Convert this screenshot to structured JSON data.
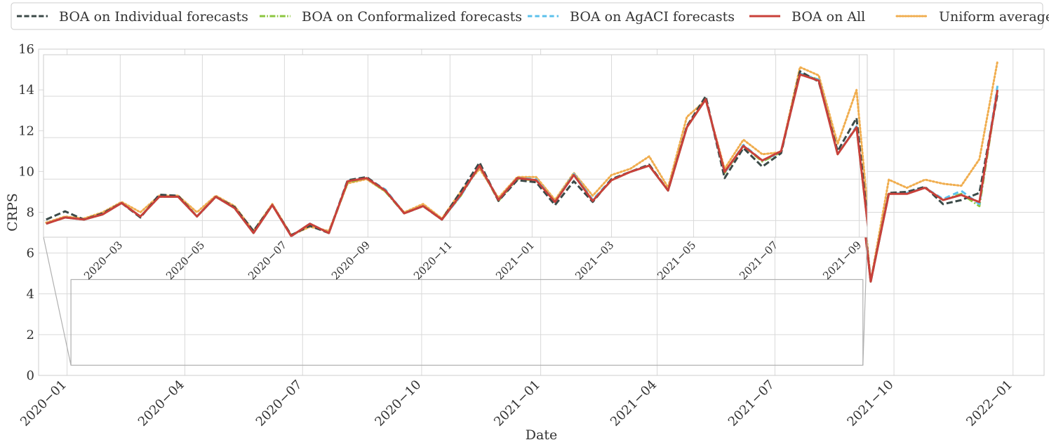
{
  "chart_data": {
    "type": "line",
    "title": "",
    "xlabel": "Date",
    "ylabel": "CRPS",
    "grid": true,
    "legend_position": "top",
    "main": {
      "xlim": [
        "2019-12-10",
        "2022-01-25"
      ],
      "ylim": [
        0,
        16
      ],
      "yticks": [
        0,
        2,
        4,
        6,
        8,
        10,
        12,
        14,
        16
      ],
      "xticks": [
        "2020-01-01",
        "2020-04-01",
        "2020-07-01",
        "2020-10-01",
        "2021-01-01",
        "2021-04-01",
        "2021-07-01",
        "2021-10-01",
        "2022-01-01"
      ],
      "xtick_labels": [
        "2020−01",
        "2020−04",
        "2020−07",
        "2020−10",
        "2021−01",
        "2021−04",
        "2021−07",
        "2021−10",
        "2022−01"
      ]
    },
    "inset": {
      "xlim": [
        "2020-01-04",
        "2021-09-07"
      ],
      "ylim": [
        7.2,
        16.0
      ],
      "yticks": [
        8,
        10,
        12,
        14,
        16
      ],
      "xticks": [
        "2020-03-01",
        "2020-05-01",
        "2020-07-01",
        "2020-09-01",
        "2020-11-01",
        "2021-01-01",
        "2021-03-01",
        "2021-05-01",
        "2021-07-01",
        "2021-09-01"
      ],
      "xtick_labels": [
        "2020−03",
        "2020−05",
        "2020−07",
        "2020−09",
        "2020−11",
        "2021−01",
        "2021−03",
        "2021−05",
        "2021−07",
        "2021−09"
      ]
    },
    "x": [
      "2020-01-06",
      "2020-01-20",
      "2020-02-03",
      "2020-02-17",
      "2020-03-02",
      "2020-03-16",
      "2020-03-30",
      "2020-04-13",
      "2020-04-27",
      "2020-05-11",
      "2020-05-25",
      "2020-06-08",
      "2020-06-22",
      "2020-07-06",
      "2020-07-20",
      "2020-08-03",
      "2020-08-17",
      "2020-08-31",
      "2020-09-14",
      "2020-09-28",
      "2020-10-12",
      "2020-10-26",
      "2020-11-09",
      "2020-11-23",
      "2020-12-07",
      "2020-12-21",
      "2021-01-04",
      "2021-01-18",
      "2021-02-01",
      "2021-02-15",
      "2021-03-01",
      "2021-03-15",
      "2021-03-29",
      "2021-04-12",
      "2021-04-26",
      "2021-05-10",
      "2021-05-24",
      "2021-06-07",
      "2021-06-21",
      "2021-07-05",
      "2021-07-19",
      "2021-08-02",
      "2021-08-16",
      "2021-08-30",
      "2021-09-13",
      "2021-09-27",
      "2021-10-11",
      "2021-10-25",
      "2021-11-08",
      "2021-11-22",
      "2021-12-06",
      "2021-12-20"
    ],
    "series": [
      {
        "name": "Uniform average",
        "color": "#f0ad4e",
        "dash": "dotted",
        "values": [
          7.9,
          8.2,
          8.1,
          8.4,
          8.9,
          8.4,
          9.2,
          9.2,
          8.4,
          9.2,
          8.7,
          7.5,
          8.8,
          7.3,
          7.7,
          7.5,
          9.8,
          10.0,
          9.4,
          8.4,
          8.8,
          8.1,
          9.4,
          10.5,
          9.1,
          10.1,
          10.1,
          9.0,
          10.3,
          9.2,
          10.2,
          10.5,
          11.1,
          9.6,
          13.0,
          13.8,
          10.5,
          11.9,
          11.2,
          11.3,
          15.4,
          15.0,
          11.7,
          14.3,
          4.6,
          9.6,
          9.2,
          9.6,
          9.4,
          9.3,
          10.6,
          15.4
        ]
      },
      {
        "name": "BOA on Conformalized forecasts",
        "color": "#8cc63f",
        "dash": "dashdot",
        "values": [
          7.85,
          8.15,
          8.05,
          8.3,
          8.85,
          8.2,
          9.15,
          9.15,
          8.2,
          9.15,
          8.6,
          7.4,
          8.75,
          7.25,
          7.85,
          7.4,
          9.85,
          10.05,
          9.4,
          8.35,
          8.7,
          8.05,
          9.2,
          10.65,
          8.95,
          10.0,
          9.95,
          8.9,
          10.25,
          8.95,
          9.95,
          10.35,
          10.65,
          9.45,
          12.5,
          13.85,
          10.3,
          11.6,
          10.85,
          11.3,
          15.1,
          14.8,
          11.2,
          12.5,
          4.6,
          8.9,
          8.95,
          9.2,
          8.6,
          8.9,
          8.3,
          14.0
        ]
      },
      {
        "name": "BOA on AgACI forecasts",
        "color": "#5bc0eb",
        "dash": "dashed",
        "values": [
          7.85,
          8.15,
          8.05,
          8.3,
          8.85,
          8.2,
          9.15,
          9.15,
          8.2,
          9.15,
          8.6,
          7.4,
          8.75,
          7.25,
          7.85,
          7.4,
          9.95,
          10.05,
          9.5,
          8.35,
          8.7,
          8.05,
          9.2,
          10.65,
          9.0,
          10.05,
          10.0,
          8.9,
          10.25,
          9.0,
          10.0,
          10.35,
          10.65,
          9.45,
          12.5,
          13.85,
          10.3,
          11.65,
          10.9,
          11.3,
          15.1,
          14.8,
          11.2,
          12.55,
          4.6,
          8.9,
          8.95,
          9.2,
          8.65,
          9.05,
          8.4,
          14.2
        ]
      },
      {
        "name": "BOA on Individual forecasts",
        "color": "#3b4a48",
        "dash": "longdash",
        "values": [
          8.05,
          8.45,
          8.05,
          8.35,
          8.85,
          8.15,
          9.25,
          9.2,
          8.2,
          9.15,
          8.65,
          7.5,
          8.75,
          7.3,
          7.75,
          7.4,
          9.95,
          10.1,
          9.45,
          8.35,
          8.7,
          8.05,
          9.4,
          10.8,
          8.95,
          9.95,
          9.85,
          8.75,
          9.9,
          8.9,
          10.0,
          10.35,
          10.7,
          9.45,
          12.55,
          14.0,
          10.05,
          11.5,
          10.6,
          11.25,
          15.2,
          14.7,
          11.35,
          12.95,
          4.6,
          8.95,
          9.0,
          9.25,
          8.4,
          8.6,
          8.95,
          13.8
        ]
      },
      {
        "name": "BOA on All",
        "color": "#c9403a",
        "dash": "solid",
        "values": [
          7.85,
          8.15,
          8.05,
          8.3,
          8.85,
          8.2,
          9.15,
          9.15,
          8.2,
          9.15,
          8.6,
          7.4,
          8.75,
          7.25,
          7.85,
          7.4,
          9.9,
          10.05,
          9.45,
          8.35,
          8.7,
          8.05,
          9.25,
          10.65,
          9.0,
          10.05,
          9.95,
          8.9,
          10.2,
          8.95,
          9.95,
          10.35,
          10.65,
          9.45,
          12.5,
          13.85,
          10.35,
          11.6,
          10.9,
          11.35,
          15.05,
          14.75,
          11.2,
          12.5,
          4.6,
          8.9,
          8.9,
          9.2,
          8.6,
          8.85,
          8.5,
          14.0
        ]
      }
    ],
    "legend": [
      {
        "label": "BOA on Individual forecasts",
        "color": "#3b4a48",
        "dash": "longdash"
      },
      {
        "label": "BOA on Conformalized forecasts",
        "color": "#8cc63f",
        "dash": "dashdot"
      },
      {
        "label": "BOA on AgACI forecasts",
        "color": "#5bc0eb",
        "dash": "dashed"
      },
      {
        "label": "BOA on All",
        "color": "#c9403a",
        "dash": "solid"
      },
      {
        "label": "Uniform average",
        "color": "#f0ad4e",
        "dash": "dotted"
      }
    ]
  }
}
